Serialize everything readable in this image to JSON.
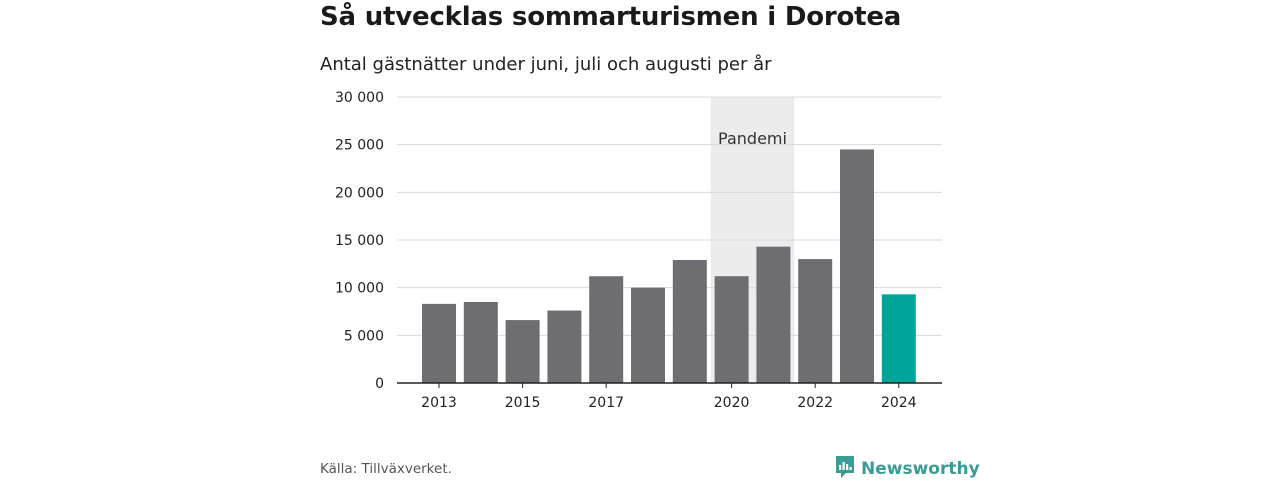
{
  "header": {
    "title": "Så utvecklas sommarturismen i Dorotea",
    "subtitle": "Antal gästnätter under juni, juli och augusti per år"
  },
  "footer": {
    "source": "Källa: Tillväxverket.",
    "brand_name": "Newsworthy",
    "brand_icon": "newsworthy-logo-icon"
  },
  "colors": {
    "bar": "#6e6d72",
    "highlight": "#00a59a",
    "band": "#ececec",
    "grid": "#d9d9d9",
    "brand": "#3a9c94"
  },
  "chart_data": {
    "type": "bar",
    "categories": [
      "2013",
      "2014",
      "2015",
      "2016",
      "2017",
      "2018",
      "2019",
      "2020",
      "2021",
      "2022",
      "2023",
      "2024"
    ],
    "values": [
      8300,
      8500,
      6600,
      7600,
      11200,
      10000,
      12900,
      11200,
      14300,
      13000,
      24500,
      9300
    ],
    "highlight_category": "2024",
    "x_tick_labels": [
      "2013",
      "2015",
      "2017",
      "2020",
      "2022",
      "2024"
    ],
    "y_ticks": [
      0,
      5000,
      10000,
      15000,
      20000,
      25000,
      30000
    ],
    "y_tick_labels": [
      "0",
      "5 000",
      "10 000",
      "15 000",
      "20 000",
      "25 000",
      "30 000"
    ],
    "ylim": [
      0,
      30000
    ],
    "grid": true,
    "annotations": [
      {
        "type": "band",
        "label": "Pandemi",
        "from": "2020",
        "to": "2021"
      }
    ],
    "xlabel": "",
    "ylabel": ""
  }
}
